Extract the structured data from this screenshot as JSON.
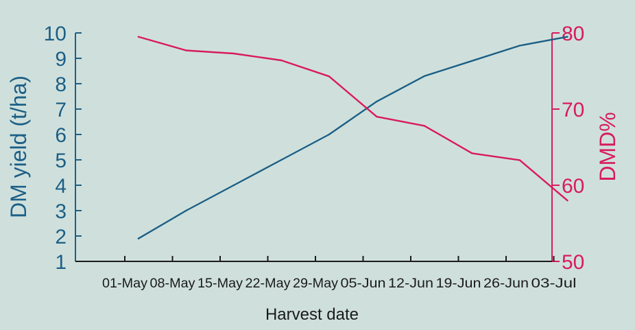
{
  "chart_data": {
    "type": "line",
    "xlabel": "Harvest date",
    "ylabel_left": "DM yield (t/ha)",
    "ylabel_right": "DMD%",
    "categories": [
      "01-May",
      "08-May",
      "15-May",
      "22-May",
      "29-May",
      "05-Jun",
      "12-Jun",
      "19-Jun",
      "26-Jun",
      "03-Jul"
    ],
    "ylim_left": [
      1,
      10
    ],
    "ylim_right": [
      50,
      80
    ],
    "yticks_left": [
      1,
      2,
      3,
      4,
      5,
      6,
      7,
      8,
      9,
      10
    ],
    "yticks_right": [
      50,
      60,
      70,
      80
    ],
    "grid": false,
    "legend": "none",
    "series": [
      {
        "axis": "left",
        "color": "#1c5f86",
        "x": [
          "03-May",
          "10-May",
          "17-May",
          "24-May",
          "31-May",
          "07-Jun",
          "14-Jun",
          "21-Jun",
          "28-Jun",
          "05-Jul"
        ],
        "values": [
          1.9,
          3.0,
          4.0,
          5.0,
          6.0,
          7.3,
          8.3,
          8.9,
          9.5,
          9.85
        ]
      },
      {
        "axis": "right",
        "color": "#d81b5c",
        "x": [
          "03-May",
          "10-May",
          "17-May",
          "24-May",
          "31-May",
          "07-Jun",
          "14-Jun",
          "21-Jun",
          "28-Jun",
          "05-Jul"
        ],
        "values": [
          79.5,
          77.7,
          77.3,
          76.4,
          74.3,
          69.0,
          67.8,
          64.2,
          63.3,
          58.0
        ]
      }
    ],
    "colors": {
      "background": "#cfe0dc",
      "left_axis": "#1c5f86",
      "right_axis": "#d81b5c",
      "x_axis": "#1a1a1a"
    }
  }
}
